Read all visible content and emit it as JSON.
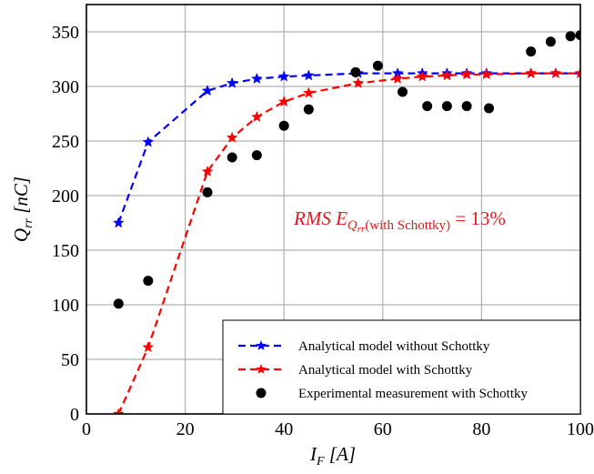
{
  "chart_data": {
    "type": "line",
    "title": "",
    "xlabel": "I_F [A]",
    "ylabel": "Q_rr [nC]",
    "xlim": [
      0,
      100
    ],
    "ylim": [
      0,
      375
    ],
    "xticks": [
      0,
      20,
      40,
      60,
      80,
      100
    ],
    "yticks": [
      0,
      50,
      100,
      150,
      200,
      250,
      300,
      350
    ],
    "grid": true,
    "legend_position": "bottom-right",
    "annotation": "RMS E_{Q_rr(with Schottky)} = 13%",
    "series": [
      {
        "name": "Analytical model without Schottky",
        "color": "#0000ff",
        "style": "dashed",
        "marker": "star-icon",
        "x": [
          6.5,
          12.5,
          24.5,
          29.5,
          34.5,
          40,
          45,
          55,
          63,
          68,
          73,
          77,
          81,
          90,
          95,
          100
        ],
        "y": [
          175,
          249,
          296,
          303,
          307,
          309,
          310,
          312,
          312,
          312,
          312,
          312,
          312,
          312,
          312,
          312
        ]
      },
      {
        "name": "Analytical model with Schottky",
        "color": "#ff0000",
        "style": "dashed",
        "marker": "star-icon",
        "x": [
          6.5,
          12.5,
          24.5,
          29.5,
          34.5,
          40,
          45,
          55,
          63,
          68,
          73,
          77,
          81,
          90,
          95,
          100
        ],
        "y": [
          0,
          61,
          222,
          253,
          272,
          286,
          294,
          303,
          307,
          309,
          310,
          311,
          311,
          312,
          312,
          312
        ]
      },
      {
        "name": "Experimental measurement with Schottky",
        "color": "#000000",
        "style": "none",
        "marker": "circle-icon",
        "x": [
          6.5,
          12.5,
          24.5,
          29.5,
          34.5,
          40,
          45,
          54.5,
          59,
          64,
          69,
          73,
          77,
          81.5,
          90,
          94,
          98,
          100
        ],
        "y": [
          101,
          122,
          203,
          235,
          237,
          264,
          279,
          313,
          319,
          295,
          282,
          282,
          282,
          280,
          332,
          341,
          346,
          347
        ]
      }
    ]
  }
}
